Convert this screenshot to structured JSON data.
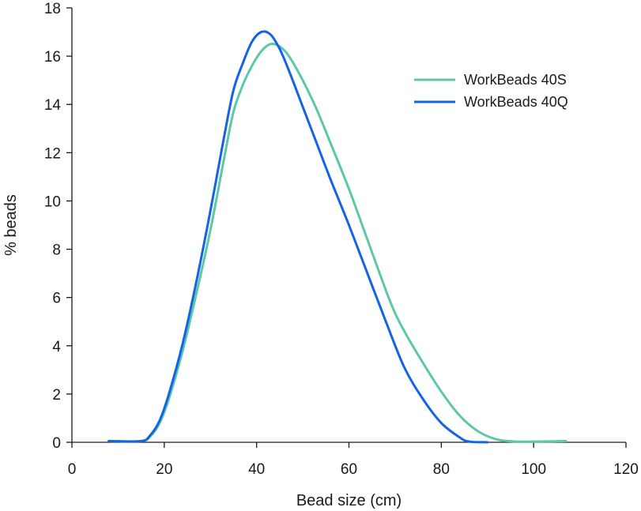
{
  "chart_data": {
    "type": "line",
    "title": "",
    "xlabel": "Bead size (cm)",
    "ylabel": "% beads",
    "xlim": [
      0,
      120
    ],
    "ylim": [
      0,
      18
    ],
    "xticks": [
      0,
      20,
      40,
      60,
      80,
      100,
      120
    ],
    "yticks": [
      0,
      2,
      4,
      6,
      8,
      10,
      12,
      14,
      16,
      18
    ],
    "grid": false,
    "legend_position": "top-right",
    "series": [
      {
        "name": "WorkBeads 40S",
        "color": "#5cc8a8",
        "points": [
          [
            8,
            0.05
          ],
          [
            15,
            0.05
          ],
          [
            17,
            0.25
          ],
          [
            19,
            0.8
          ],
          [
            21,
            1.8
          ],
          [
            24,
            3.8
          ],
          [
            27,
            6.2
          ],
          [
            30,
            8.8
          ],
          [
            33,
            11.8
          ],
          [
            35,
            13.7
          ],
          [
            37,
            14.8
          ],
          [
            39,
            15.6
          ],
          [
            41,
            16.2
          ],
          [
            43,
            16.5
          ],
          [
            45,
            16.4
          ],
          [
            47,
            16.0
          ],
          [
            50,
            15.0
          ],
          [
            53,
            13.8
          ],
          [
            56,
            12.4
          ],
          [
            60,
            10.5
          ],
          [
            64,
            8.4
          ],
          [
            69,
            5.8
          ],
          [
            72,
            4.6
          ],
          [
            76,
            3.3
          ],
          [
            80,
            2.1
          ],
          [
            84,
            1.1
          ],
          [
            88,
            0.45
          ],
          [
            92,
            0.12
          ],
          [
            96,
            0.03
          ],
          [
            100,
            0.03
          ],
          [
            107,
            0.05
          ]
        ]
      },
      {
        "name": "WorkBeads 40Q",
        "color": "#1463e6",
        "points": [
          [
            8,
            0.05
          ],
          [
            15,
            0.05
          ],
          [
            17,
            0.3
          ],
          [
            19,
            0.9
          ],
          [
            21,
            2.0
          ],
          [
            24,
            4.1
          ],
          [
            27,
            6.7
          ],
          [
            30,
            9.6
          ],
          [
            33,
            12.7
          ],
          [
            35,
            14.6
          ],
          [
            37,
            15.7
          ],
          [
            39,
            16.6
          ],
          [
            41,
            17.0
          ],
          [
            43,
            16.9
          ],
          [
            45,
            16.3
          ],
          [
            47,
            15.4
          ],
          [
            50,
            13.9
          ],
          [
            53,
            12.4
          ],
          [
            56,
            10.9
          ],
          [
            60,
            9.0
          ],
          [
            64,
            7.0
          ],
          [
            68,
            5.0
          ],
          [
            72,
            3.1
          ],
          [
            76,
            1.8
          ],
          [
            80,
            0.8
          ],
          [
            84,
            0.2
          ],
          [
            86,
            0.03
          ],
          [
            90,
            0.0
          ]
        ]
      }
    ]
  }
}
